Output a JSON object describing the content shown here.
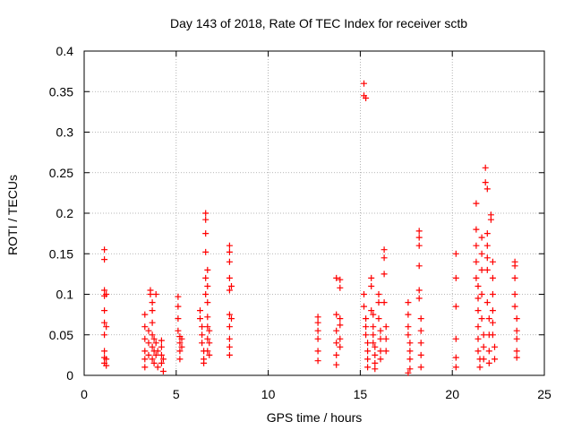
{
  "chart_data": {
    "type": "scatter",
    "title": "Day 143 of 2018, Rate Of TEC Index for receiver sctb",
    "xlabel": "GPS time / hours",
    "ylabel": "ROTI / TECUs",
    "xlim": [
      0,
      25
    ],
    "ylim": [
      0,
      0.4
    ],
    "x_ticks": [
      0,
      5,
      10,
      15,
      20,
      25
    ],
    "x_tick_labels": [
      "0",
      "5",
      "10",
      "15",
      "20",
      "25"
    ],
    "y_ticks": [
      0,
      0.05,
      0.1,
      0.15,
      0.2,
      0.25,
      0.3,
      0.35,
      0.4
    ],
    "y_tick_labels": [
      "0",
      "0.05",
      "0.1",
      "0.15",
      "0.2",
      "0.25",
      "0.3",
      "0.35",
      "0.4"
    ],
    "grid": true,
    "marker": "+",
    "marker_color": "#ff0000",
    "series": [
      {
        "name": "ROTI",
        "points": [
          [
            1.1,
            0.155
          ],
          [
            1.1,
            0.143
          ],
          [
            1.1,
            0.105
          ],
          [
            1.1,
            0.098
          ],
          [
            1.1,
            0.08
          ],
          [
            1.1,
            0.065
          ],
          [
            1.1,
            0.05
          ],
          [
            1.1,
            0.03
          ],
          [
            1.1,
            0.022
          ],
          [
            1.1,
            0.015
          ],
          [
            1.2,
            0.1
          ],
          [
            1.2,
            0.06
          ],
          [
            1.2,
            0.02
          ],
          [
            1.2,
            0.012
          ],
          [
            3.3,
            0.075
          ],
          [
            3.3,
            0.06
          ],
          [
            3.3,
            0.045
          ],
          [
            3.3,
            0.03
          ],
          [
            3.3,
            0.02
          ],
          [
            3.3,
            0.01
          ],
          [
            3.5,
            0.055
          ],
          [
            3.5,
            0.04
          ],
          [
            3.5,
            0.025
          ],
          [
            3.6,
            0.105
          ],
          [
            3.6,
            0.1
          ],
          [
            3.7,
            0.09
          ],
          [
            3.7,
            0.08
          ],
          [
            3.7,
            0.065
          ],
          [
            3.7,
            0.05
          ],
          [
            3.7,
            0.035
          ],
          [
            3.7,
            0.02
          ],
          [
            3.8,
            0.045
          ],
          [
            3.8,
            0.03
          ],
          [
            3.8,
            0.015
          ],
          [
            3.9,
            0.1
          ],
          [
            3.9,
            0.04
          ],
          [
            3.9,
            0.025
          ],
          [
            4.0,
            0.03
          ],
          [
            4.0,
            0.01
          ],
          [
            4.2,
            0.043
          ],
          [
            4.2,
            0.035
          ],
          [
            4.2,
            0.025
          ],
          [
            4.2,
            0.015
          ],
          [
            4.3,
            0.005
          ],
          [
            4.3,
            0.02
          ],
          [
            5.1,
            0.097
          ],
          [
            5.1,
            0.085
          ],
          [
            5.1,
            0.07
          ],
          [
            5.1,
            0.055
          ],
          [
            5.2,
            0.048
          ],
          [
            5.2,
            0.04
          ],
          [
            5.2,
            0.03
          ],
          [
            5.2,
            0.02
          ],
          [
            5.3,
            0.045
          ],
          [
            5.3,
            0.035
          ],
          [
            6.3,
            0.08
          ],
          [
            6.3,
            0.07
          ],
          [
            6.4,
            0.06
          ],
          [
            6.4,
            0.05
          ],
          [
            6.4,
            0.04
          ],
          [
            6.5,
            0.03
          ],
          [
            6.5,
            0.02
          ],
          [
            6.5,
            0.015
          ],
          [
            6.6,
            0.2
          ],
          [
            6.6,
            0.192
          ],
          [
            6.6,
            0.175
          ],
          [
            6.6,
            0.152
          ],
          [
            6.6,
            0.12
          ],
          [
            6.6,
            0.1
          ],
          [
            6.7,
            0.13
          ],
          [
            6.7,
            0.11
          ],
          [
            6.7,
            0.09
          ],
          [
            6.7,
            0.072
          ],
          [
            6.7,
            0.06
          ],
          [
            6.7,
            0.045
          ],
          [
            6.7,
            0.03
          ],
          [
            6.8,
            0.055
          ],
          [
            6.8,
            0.04
          ],
          [
            6.8,
            0.025
          ],
          [
            7.9,
            0.16
          ],
          [
            7.9,
            0.152
          ],
          [
            7.9,
            0.14
          ],
          [
            7.9,
            0.12
          ],
          [
            7.9,
            0.105
          ],
          [
            7.9,
            0.075
          ],
          [
            7.9,
            0.06
          ],
          [
            7.9,
            0.045
          ],
          [
            7.9,
            0.035
          ],
          [
            7.9,
            0.025
          ],
          [
            8.0,
            0.11
          ],
          [
            8.0,
            0.07
          ],
          [
            12.7,
            0.072
          ],
          [
            12.7,
            0.065
          ],
          [
            12.7,
            0.055
          ],
          [
            12.7,
            0.045
          ],
          [
            12.7,
            0.03
          ],
          [
            12.7,
            0.018
          ],
          [
            13.7,
            0.12
          ],
          [
            13.7,
            0.075
          ],
          [
            13.7,
            0.055
          ],
          [
            13.7,
            0.04
          ],
          [
            13.7,
            0.025
          ],
          [
            13.7,
            0.013
          ],
          [
            13.9,
            0.118
          ],
          [
            13.9,
            0.108
          ],
          [
            13.9,
            0.07
          ],
          [
            13.9,
            0.062
          ],
          [
            13.9,
            0.045
          ],
          [
            13.9,
            0.035
          ],
          [
            15.2,
            0.36
          ],
          [
            15.2,
            0.345
          ],
          [
            15.3,
            0.342
          ],
          [
            15.2,
            0.1
          ],
          [
            15.2,
            0.085
          ],
          [
            15.3,
            0.07
          ],
          [
            15.3,
            0.06
          ],
          [
            15.3,
            0.05
          ],
          [
            15.4,
            0.04
          ],
          [
            15.4,
            0.03
          ],
          [
            15.4,
            0.02
          ],
          [
            15.4,
            0.01
          ],
          [
            15.6,
            0.12
          ],
          [
            15.6,
            0.11
          ],
          [
            15.6,
            0.08
          ],
          [
            15.7,
            0.075
          ],
          [
            15.7,
            0.06
          ],
          [
            15.7,
            0.05
          ],
          [
            15.7,
            0.04
          ],
          [
            15.8,
            0.035
          ],
          [
            15.8,
            0.025
          ],
          [
            15.8,
            0.015
          ],
          [
            15.8,
            0.008
          ],
          [
            16.0,
            0.1
          ],
          [
            16.0,
            0.09
          ],
          [
            16.0,
            0.07
          ],
          [
            16.1,
            0.055
          ],
          [
            16.1,
            0.045
          ],
          [
            16.1,
            0.03
          ],
          [
            16.1,
            0.02
          ],
          [
            16.3,
            0.155
          ],
          [
            16.3,
            0.145
          ],
          [
            16.3,
            0.125
          ],
          [
            16.3,
            0.09
          ],
          [
            16.4,
            0.06
          ],
          [
            16.4,
            0.045
          ],
          [
            16.4,
            0.03
          ],
          [
            17.6,
            0.09
          ],
          [
            17.6,
            0.075
          ],
          [
            17.6,
            0.06
          ],
          [
            17.6,
            0.05
          ],
          [
            17.7,
            0.04
          ],
          [
            17.7,
            0.03
          ],
          [
            17.7,
            0.02
          ],
          [
            17.7,
            0.008
          ],
          [
            17.6,
            0.003
          ],
          [
            18.2,
            0.178
          ],
          [
            18.2,
            0.17
          ],
          [
            18.2,
            0.16
          ],
          [
            18.2,
            0.135
          ],
          [
            18.2,
            0.105
          ],
          [
            18.2,
            0.095
          ],
          [
            18.3,
            0.07
          ],
          [
            18.3,
            0.055
          ],
          [
            18.3,
            0.04
          ],
          [
            18.3,
            0.025
          ],
          [
            18.3,
            0.01
          ],
          [
            20.2,
            0.15
          ],
          [
            20.2,
            0.12
          ],
          [
            20.2,
            0.085
          ],
          [
            20.2,
            0.045
          ],
          [
            20.2,
            0.022
          ],
          [
            20.2,
            0.01
          ],
          [
            21.3,
            0.212
          ],
          [
            21.3,
            0.18
          ],
          [
            21.3,
            0.16
          ],
          [
            21.3,
            0.14
          ],
          [
            21.3,
            0.12
          ],
          [
            21.4,
            0.11
          ],
          [
            21.4,
            0.095
          ],
          [
            21.4,
            0.08
          ],
          [
            21.4,
            0.06
          ],
          [
            21.4,
            0.045
          ],
          [
            21.4,
            0.03
          ],
          [
            21.5,
            0.02
          ],
          [
            21.5,
            0.01
          ],
          [
            21.6,
            0.17
          ],
          [
            21.6,
            0.15
          ],
          [
            21.6,
            0.13
          ],
          [
            21.6,
            0.1
          ],
          [
            21.6,
            0.07
          ],
          [
            21.7,
            0.05
          ],
          [
            21.7,
            0.035
          ],
          [
            21.7,
            0.02
          ],
          [
            21.8,
            0.256
          ],
          [
            21.8,
            0.238
          ],
          [
            21.9,
            0.23
          ],
          [
            21.9,
            0.175
          ],
          [
            21.9,
            0.16
          ],
          [
            21.9,
            0.145
          ],
          [
            21.9,
            0.13
          ],
          [
            21.9,
            0.09
          ],
          [
            22.0,
            0.07
          ],
          [
            22.0,
            0.05
          ],
          [
            22.0,
            0.03
          ],
          [
            22.0,
            0.015
          ],
          [
            22.1,
            0.198
          ],
          [
            22.1,
            0.192
          ],
          [
            22.2,
            0.14
          ],
          [
            22.2,
            0.12
          ],
          [
            22.2,
            0.1
          ],
          [
            22.2,
            0.08
          ],
          [
            22.2,
            0.065
          ],
          [
            22.2,
            0.05
          ],
          [
            22.3,
            0.035
          ],
          [
            22.3,
            0.02
          ],
          [
            23.4,
            0.14
          ],
          [
            23.4,
            0.135
          ],
          [
            23.4,
            0.12
          ],
          [
            23.4,
            0.1
          ],
          [
            23.4,
            0.085
          ],
          [
            23.5,
            0.07
          ],
          [
            23.5,
            0.055
          ],
          [
            23.5,
            0.045
          ],
          [
            23.5,
            0.03
          ],
          [
            23.5,
            0.022
          ]
        ]
      }
    ]
  }
}
